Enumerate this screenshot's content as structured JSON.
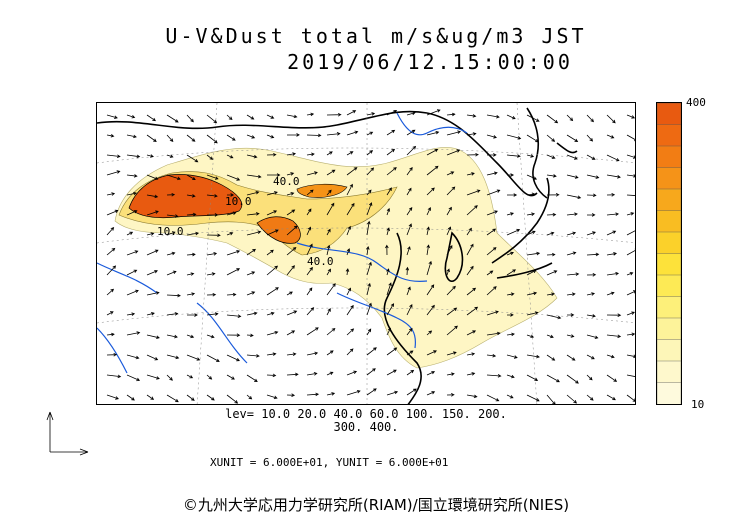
{
  "title_line1": "U-V&Dust total m/s&ug/m3 JST",
  "title_line2": "2019/06/12.15:00:00",
  "colorbar": {
    "max_label": "400",
    "min_label": "10",
    "colors": [
      "#e85a10",
      "#ee6a12",
      "#f27d14",
      "#f59318",
      "#f7a81c",
      "#f9bd22",
      "#fbd12a",
      "#fde23a",
      "#fdea55",
      "#fdf07a",
      "#fdf39a",
      "#fdf6b8",
      "#fef8cc",
      "#fefadd"
    ]
  },
  "contour_labels": [
    "40.0",
    "10.0",
    "40.0",
    "10.0"
  ],
  "levels_text": [
    "lev= 10.0 20.0 40.0 60.0 100. 150. 200.",
    "300. 400."
  ],
  "units_text": "XUNIT = 6.000E+01, YUNIT = 6.000E+01",
  "credit": "©九州大学応用力学研究所(RIAM)/国立環境研究所(NIES)",
  "colors": {
    "coast": "#000000",
    "river": "#1a5adb",
    "dust_high": "#e85a10",
    "dust_low": "#fef8cc"
  }
}
